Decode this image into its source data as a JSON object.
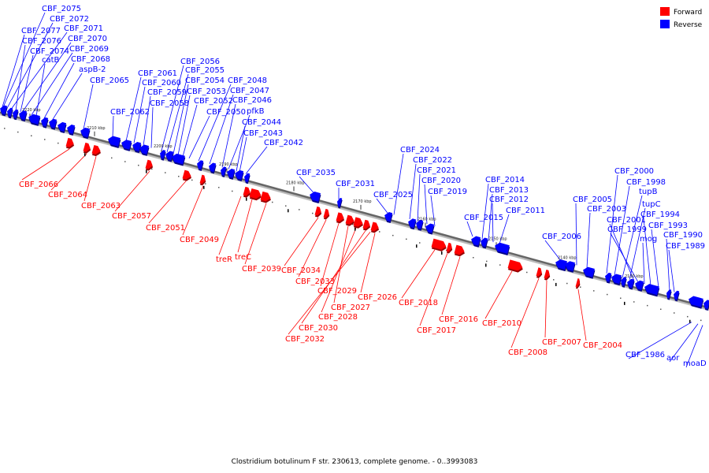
{
  "caption": "Clostridium botulinum F str. 230613, complete genome. - 0..3993083",
  "legend": [
    {
      "label": "Forward",
      "color": "#ff0000"
    },
    {
      "label": "Reverse",
      "color": "#0000ff"
    }
  ],
  "colors": {
    "forward": "#ff0000",
    "reverse": "#0000ff",
    "backbone": "#666666"
  },
  "ticks": [
    "2220 kbp",
    "2210 kbp",
    "2200 kbp",
    "2190 kbp",
    "2180 kbp",
    "2170 kbp",
    "2160 kbp",
    "2150 kbp",
    "2140 kbp",
    "2130 kbp"
  ],
  "reverse_labels": [
    "CBF_2075",
    "CBF_2072",
    "CBF_2077",
    "CBF_2071",
    "CBF_2076",
    "CBF_2070",
    "CBF_2074",
    "CBF_2069",
    "catB",
    "CBF_2068",
    "aspB-2",
    "CBF_2065",
    "CBF_2062",
    "CBF_2061",
    "CBF_2060",
    "CBF_2059",
    "CBF_2058",
    "CBF_2056",
    "CBF_2055",
    "CBF_2054",
    "CBF_2053",
    "CBF_2052",
    "CBF_2050",
    "CBF_2048",
    "CBF_2047",
    "CBF_2046",
    "pfkB",
    "CBF_2044",
    "CBF_2043",
    "CBF_2042",
    "CBF_2035",
    "CBF_2031",
    "CBF_2025",
    "CBF_2024",
    "CBF_2022",
    "CBF_2021",
    "CBF_2020",
    "CBF_2019",
    "CBF_2015",
    "CBF_2014",
    "CBF_2013",
    "CBF_2012",
    "CBF_2011",
    "CBF_2006",
    "CBF_2005",
    "CBF_2003",
    "CBF_2000",
    "CBF_1998",
    "tupB",
    "tupC",
    "CBF_2001",
    "CBF_1999",
    "mog",
    "CBF_1994",
    "CBF_1993",
    "CBF_1990",
    "CBF_1989",
    "CBF_1986",
    "aor",
    "moaD"
  ],
  "forward_labels": [
    "CBF_2066",
    "CBF_2064",
    "CBF_2063",
    "CBF_2057",
    "CBF_2051",
    "CBF_2049",
    "treR",
    "treC",
    "CBF_2039",
    "CBF_2034",
    "CBF_2033",
    "CBF_2029",
    "CBF_2027",
    "CBF_2028",
    "CBF_2030",
    "CBF_2032",
    "CBF_2026",
    "CBF_2018",
    "CBF_2017",
    "CBF_2016",
    "CBF_2010",
    "CBF_2008",
    "CBF_2007",
    "CBF_2004"
  ]
}
